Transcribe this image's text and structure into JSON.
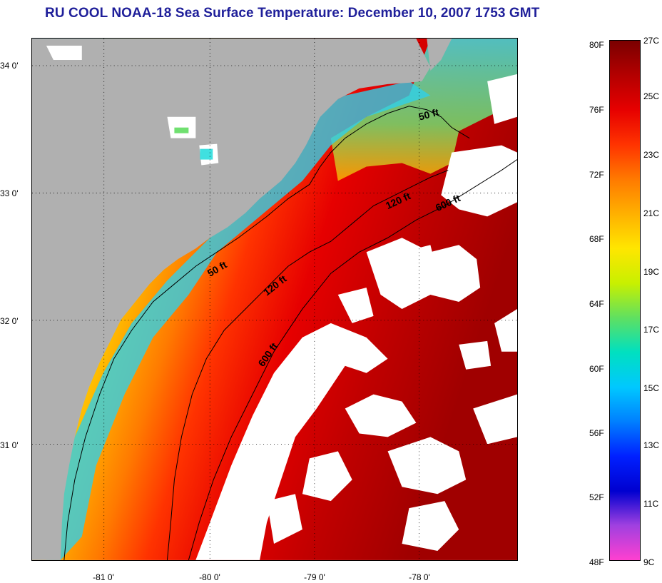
{
  "title": "RU COOL  NOAA-18  Sea Surface Temperature:  December 10, 2007 1753 GMT",
  "map": {
    "lat_labels": [
      "34 0'",
      "33 0'",
      "32 0'",
      "31 0'"
    ],
    "lon_labels": [
      "-81 0'",
      "-80 0'",
      "-79 0'",
      "-78 0'"
    ],
    "land_color": "#b0b0b0",
    "no_data_color": "#ffffff",
    "contour_labels": [
      "50 ft",
      "120 ft",
      "600 ft",
      "50 ft",
      "120 ft",
      "600 ft"
    ]
  },
  "colorbar": {
    "fahrenheit_labels": [
      "80F",
      "76F",
      "72F",
      "68F",
      "64F",
      "60F",
      "56F",
      "52F",
      "48F"
    ],
    "celsius_labels": [
      "27C",
      "25C",
      "23C",
      "21C",
      "19C",
      "17C",
      "15C",
      "13C",
      "11C",
      "9C"
    ],
    "colors_top_to_bottom": [
      "#7a0000",
      "#b40000",
      "#e60000",
      "#ff3300",
      "#ff7a00",
      "#ffb000",
      "#ffe600",
      "#c8f000",
      "#60e060",
      "#00e0c0",
      "#00c8ff",
      "#0080ff",
      "#0020ff",
      "#0000d0",
      "#a040e0",
      "#ff40d0"
    ]
  }
}
